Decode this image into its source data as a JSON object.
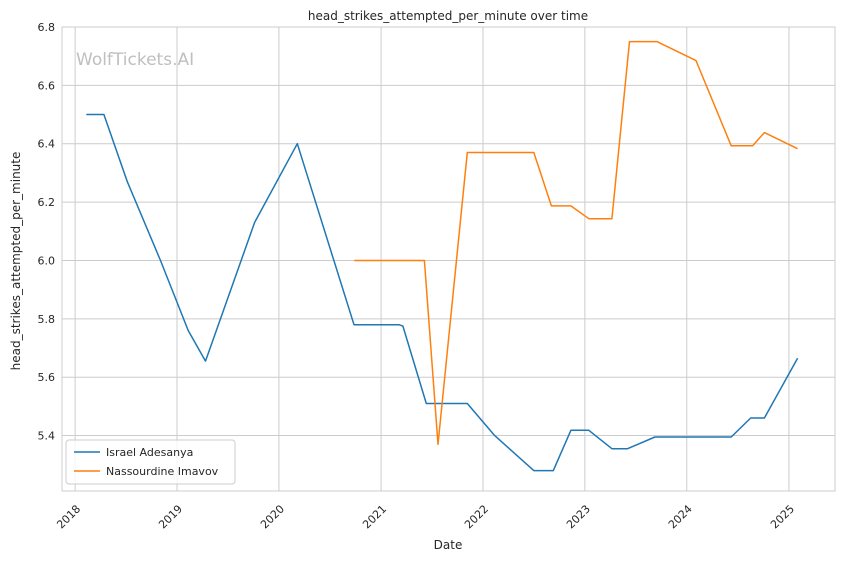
{
  "chart_data": {
    "type": "line",
    "title": "head_strikes_attempted_per_minute over time",
    "xlabel": "Date",
    "ylabel": "head_strikes_attempted_per_minute",
    "watermark": "WolfTickets.AI",
    "xlim": [
      "2017-11-15",
      "2025-06-15"
    ],
    "ylim": [
      5.21,
      6.8
    ],
    "x_ticks": [
      "2018",
      "2019",
      "2020",
      "2021",
      "2022",
      "2023",
      "2024",
      "2025"
    ],
    "y_ticks": [
      "5.4",
      "5.6",
      "5.8",
      "6.0",
      "6.2",
      "6.4",
      "6.6",
      "6.8"
    ],
    "grid": true,
    "legend_position": "lower-left",
    "series": [
      {
        "name": "Israel Adesanya",
        "color": "#1f77b4",
        "points": [
          {
            "x": "2018-02-10",
            "y": 6.5
          },
          {
            "x": "2018-04-14",
            "y": 6.5
          },
          {
            "x": "2018-07-07",
            "y": 6.27
          },
          {
            "x": "2018-11-03",
            "y": 6.0
          },
          {
            "x": "2019-02-10",
            "y": 5.76
          },
          {
            "x": "2019-04-13",
            "y": 5.655
          },
          {
            "x": "2019-10-06",
            "y": 6.13
          },
          {
            "x": "2020-03-07",
            "y": 6.4
          },
          {
            "x": "2020-09-26",
            "y": 5.78
          },
          {
            "x": "2021-03-06",
            "y": 5.78
          },
          {
            "x": "2021-03-20",
            "y": 5.775
          },
          {
            "x": "2021-06-12",
            "y": 5.51
          },
          {
            "x": "2021-11-06",
            "y": 5.51
          },
          {
            "x": "2022-02-12",
            "y": 5.4
          },
          {
            "x": "2022-07-02",
            "y": 5.28
          },
          {
            "x": "2022-09-10",
            "y": 5.28
          },
          {
            "x": "2022-11-12",
            "y": 5.418
          },
          {
            "x": "2023-01-15",
            "y": 5.418
          },
          {
            "x": "2023-04-08",
            "y": 5.355
          },
          {
            "x": "2023-06-03",
            "y": 5.355
          },
          {
            "x": "2023-09-09",
            "y": 5.395
          },
          {
            "x": "2024-06-08",
            "y": 5.395
          },
          {
            "x": "2024-08-17",
            "y": 5.46
          },
          {
            "x": "2024-10-05",
            "y": 5.46
          },
          {
            "x": "2025-02-01",
            "y": 5.665
          }
        ]
      },
      {
        "name": "Nassourdine Imavov",
        "color": "#ff7f0e",
        "points": [
          {
            "x": "2020-09-27",
            "y": 6.0
          },
          {
            "x": "2021-06-05",
            "y": 6.0
          },
          {
            "x": "2021-07-24",
            "y": 5.37
          },
          {
            "x": "2021-11-06",
            "y": 6.37
          },
          {
            "x": "2022-07-02",
            "y": 6.37
          },
          {
            "x": "2022-09-03",
            "y": 6.187
          },
          {
            "x": "2022-11-12",
            "y": 6.187
          },
          {
            "x": "2023-01-15",
            "y": 6.143
          },
          {
            "x": "2023-04-08",
            "y": 6.143
          },
          {
            "x": "2023-06-10",
            "y": 6.75
          },
          {
            "x": "2023-09-16",
            "y": 6.75
          },
          {
            "x": "2024-02-03",
            "y": 6.685
          },
          {
            "x": "2024-06-08",
            "y": 6.393
          },
          {
            "x": "2024-08-24",
            "y": 6.393
          },
          {
            "x": "2024-10-05",
            "y": 6.438
          },
          {
            "x": "2025-02-01",
            "y": 6.383
          }
        ]
      }
    ]
  }
}
